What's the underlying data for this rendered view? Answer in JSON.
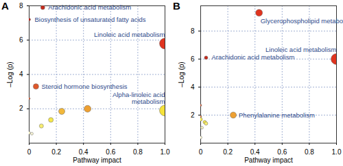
{
  "chart_data": [
    {
      "type": "scatter",
      "title": "A",
      "x_label": "Pathway impact",
      "y_label": "–Log (p)",
      "x": [
        0.1,
        0.0,
        1.0,
        0.05,
        0.0,
        1.0,
        0.43,
        0.24,
        0.16,
        0.09,
        0.0,
        0.02
      ],
      "values": [
        7.9,
        7.2,
        5.8,
        3.3,
        2.6,
        1.9,
        2.0,
        1.85,
        1.35,
        1.0,
        0.6,
        0.55
      ],
      "labels": [
        "Arachidonic acid metabolism",
        "Biosynthesis of unsaturated fatty acids",
        "Linoleic acid metabolism",
        "Steroid hormone biosynthesis",
        null,
        "Alpha-linoleic acid\nmetabolism",
        null,
        null,
        null,
        null,
        null,
        null
      ],
      "colors": [
        "#c62a1c",
        "#b8231a",
        "#e0341f",
        "#e0582a",
        "#d8603a",
        "#f5e23a",
        "#eea032",
        "#f2b83a",
        "#f6e84a",
        "#f8ee70",
        "#fbf6c8",
        "#fcf8d8"
      ],
      "sizes": [
        3,
        2,
        8,
        4,
        1.5,
        8,
        5,
        4.5,
        3.5,
        3,
        2,
        2
      ],
      "xlim": [
        0,
        1.0
      ],
      "ylim": [
        0,
        8
      ],
      "xticks": [
        0,
        0.2,
        0.4,
        0.6,
        0.8,
        {
          "value": 1,
          "label": "1.0"
        }
      ],
      "yticks": [
        2,
        4,
        6,
        8
      ],
      "grid": true
    },
    {
      "type": "scatter",
      "title": "B",
      "x_label": "Pathway impact",
      "y_label": "–Log (p)",
      "x": [
        0.43,
        0.04,
        1.0,
        0.0,
        0.24,
        0.0,
        0.0,
        0.03,
        0.04,
        0.01,
        0.0
      ],
      "values": [
        9.3,
        6.1,
        6.0,
        2.7,
        2.0,
        1.9,
        1.7,
        1.5,
        1.4,
        1.1,
        0.4
      ],
      "labels": [
        "Glycerophospholipid metabolism",
        "Arachidonic acid metabolism",
        "Linoleic acid metabolism",
        null,
        "Phenylalanine metabolism",
        null,
        null,
        null,
        null,
        null,
        null
      ],
      "colors": [
        "#e0341f",
        "#c62a1c",
        "#e0341f",
        "#d8603a",
        "#eea032",
        "#e07a3a",
        "#f6e84a",
        "#f6e84a",
        "#f8ee70",
        "#fbf6c8",
        "#fcf8d8"
      ],
      "sizes": [
        5,
        2.5,
        8,
        1.5,
        4.5,
        1.5,
        2.5,
        2.5,
        2.5,
        2,
        2
      ],
      "xlim": [
        0,
        1.0
      ],
      "ylim": [
        0,
        9.8
      ],
      "xticks": [
        0,
        0.2,
        0.4,
        0.6,
        0.8,
        {
          "value": 1,
          "label": "1.0"
        }
      ],
      "yticks": [
        2,
        4,
        6,
        8
      ],
      "grid": true
    }
  ]
}
